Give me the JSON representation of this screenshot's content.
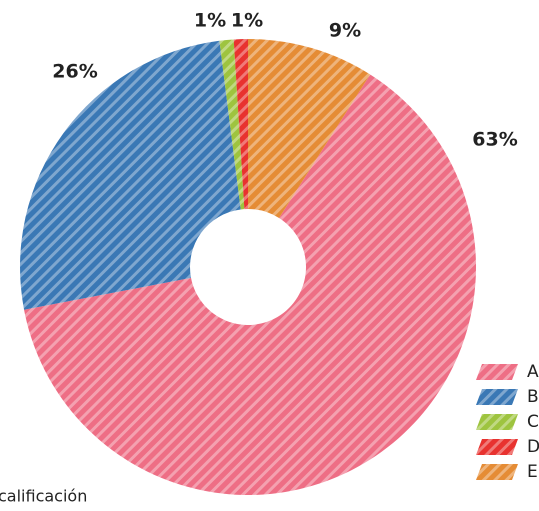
{
  "chart_data": {
    "type": "donut",
    "categories": [
      "A",
      "B",
      "C",
      "D",
      "E"
    ],
    "values": [
      63,
      26,
      1,
      1,
      9
    ],
    "value_labels": [
      "63%",
      "26%",
      "1%",
      "1%",
      "9%"
    ],
    "colors": [
      "#ee6e85",
      "#3a78b5",
      "#9ec43f",
      "#e8322f",
      "#e58c35"
    ],
    "caption": "calificación",
    "legend": "bottom-right"
  }
}
